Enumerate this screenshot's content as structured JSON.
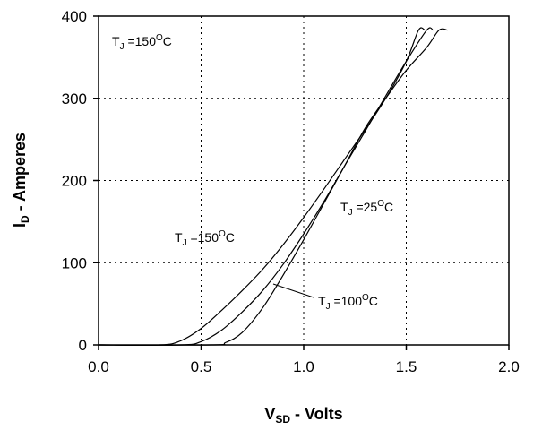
{
  "chart_data": {
    "type": "line",
    "title": "",
    "xlabel": {
      "main": "V",
      "sub": "SD",
      "rest": " -  Volts"
    },
    "ylabel": {
      "main": "I",
      "sub": "D",
      "rest": " - Amperes"
    },
    "xlim": [
      0.0,
      2.0
    ],
    "ylim": [
      0,
      400
    ],
    "x_ticks": [
      "0.0",
      "0.5",
      "1.0",
      "1.5",
      "2.0"
    ],
    "y_ticks": [
      "0",
      "100",
      "200",
      "300",
      "400"
    ],
    "grid": "dotted, inner lines only",
    "legend": "none",
    "series": [
      {
        "temperature": "150",
        "points": [
          [
            0.0,
            0
          ],
          [
            0.3,
            0
          ],
          [
            0.4,
            5
          ],
          [
            0.5,
            20
          ],
          [
            0.6,
            42
          ],
          [
            0.7,
            66
          ],
          [
            0.8,
            92
          ],
          [
            0.9,
            122
          ],
          [
            1.0,
            155
          ],
          [
            1.1,
            190
          ],
          [
            1.2,
            226
          ],
          [
            1.3,
            262
          ],
          [
            1.4,
            300
          ],
          [
            1.5,
            345
          ],
          [
            1.56,
            383
          ],
          [
            1.59,
            383
          ]
        ]
      },
      {
        "temperature": "100",
        "points": [
          [
            0.0,
            0
          ],
          [
            0.4,
            0
          ],
          [
            0.5,
            4
          ],
          [
            0.6,
            18
          ],
          [
            0.7,
            40
          ],
          [
            0.8,
            66
          ],
          [
            0.9,
            98
          ],
          [
            1.0,
            135
          ],
          [
            1.1,
            175
          ],
          [
            1.2,
            218
          ],
          [
            1.3,
            260
          ],
          [
            1.4,
            303
          ],
          [
            1.5,
            345
          ],
          [
            1.6,
            383
          ],
          [
            1.63,
            383
          ]
        ]
      },
      {
        "temperature": "25",
        "points": [
          [
            0.0,
            0
          ],
          [
            0.55,
            0
          ],
          [
            0.62,
            3
          ],
          [
            0.7,
            15
          ],
          [
            0.8,
            45
          ],
          [
            0.9,
            85
          ],
          [
            1.0,
            128
          ],
          [
            1.1,
            173
          ],
          [
            1.2,
            218
          ],
          [
            1.3,
            264
          ],
          [
            1.4,
            300
          ],
          [
            1.5,
            334
          ],
          [
            1.6,
            362
          ],
          [
            1.66,
            383
          ],
          [
            1.7,
            383
          ]
        ]
      }
    ],
    "annotations": [
      {
        "id": "top-left",
        "prefix": "T",
        "sub": "J",
        "value": " =150",
        "sup": "O",
        "unit": "C"
      },
      {
        "id": "mid-150",
        "prefix": "T",
        "sub": "J",
        "value": " =150",
        "sup": "O",
        "unit": "C"
      },
      {
        "id": "mid-25",
        "prefix": "T",
        "sub": "J",
        "value": " =25",
        "sup": "O",
        "unit": "C"
      },
      {
        "id": "mid-100",
        "prefix": "T",
        "sub": "J",
        "value": " =100",
        "sup": "O",
        "unit": "C"
      }
    ]
  }
}
